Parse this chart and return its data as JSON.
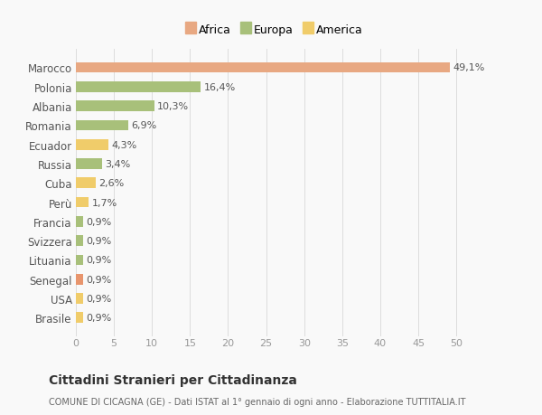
{
  "categories": [
    "Brasile",
    "USA",
    "Senegal",
    "Lituania",
    "Svizzera",
    "Francia",
    "Perù",
    "Cuba",
    "Russia",
    "Ecuador",
    "Romania",
    "Albania",
    "Polonia",
    "Marocco"
  ],
  "values": [
    0.9,
    0.9,
    0.9,
    0.9,
    0.9,
    0.9,
    1.7,
    2.6,
    3.4,
    4.3,
    6.9,
    10.3,
    16.4,
    49.1
  ],
  "labels": [
    "0,9%",
    "0,9%",
    "0,9%",
    "0,9%",
    "0,9%",
    "0,9%",
    "1,7%",
    "2,6%",
    "3,4%",
    "4,3%",
    "6,9%",
    "10,3%",
    "16,4%",
    "49,1%"
  ],
  "colors": [
    "#f0cc6a",
    "#f0cc6a",
    "#e8956d",
    "#a8c07a",
    "#a8c07a",
    "#a8c07a",
    "#f0cc6a",
    "#f0cc6a",
    "#a8c07a",
    "#f0cc6a",
    "#a8c07a",
    "#a8c07a",
    "#a8c07a",
    "#e8a882"
  ],
  "legend": [
    {
      "label": "Africa",
      "color": "#e8a882"
    },
    {
      "label": "Europa",
      "color": "#a8c07a"
    },
    {
      "label": "America",
      "color": "#f0cc6a"
    }
  ],
  "xlim": [
    0,
    52
  ],
  "xticks": [
    0,
    5,
    10,
    15,
    20,
    25,
    30,
    35,
    40,
    45,
    50
  ],
  "title": "Cittadini Stranieri per Cittadinanza",
  "subtitle": "COMUNE DI CICAGNA (GE) - Dati ISTAT al 1° gennaio di ogni anno - Elaborazione TUTTITALIA.IT",
  "background_color": "#f9f9f9",
  "label_fontsize": 8,
  "tick_fontsize": 8,
  "ytick_fontsize": 8.5
}
